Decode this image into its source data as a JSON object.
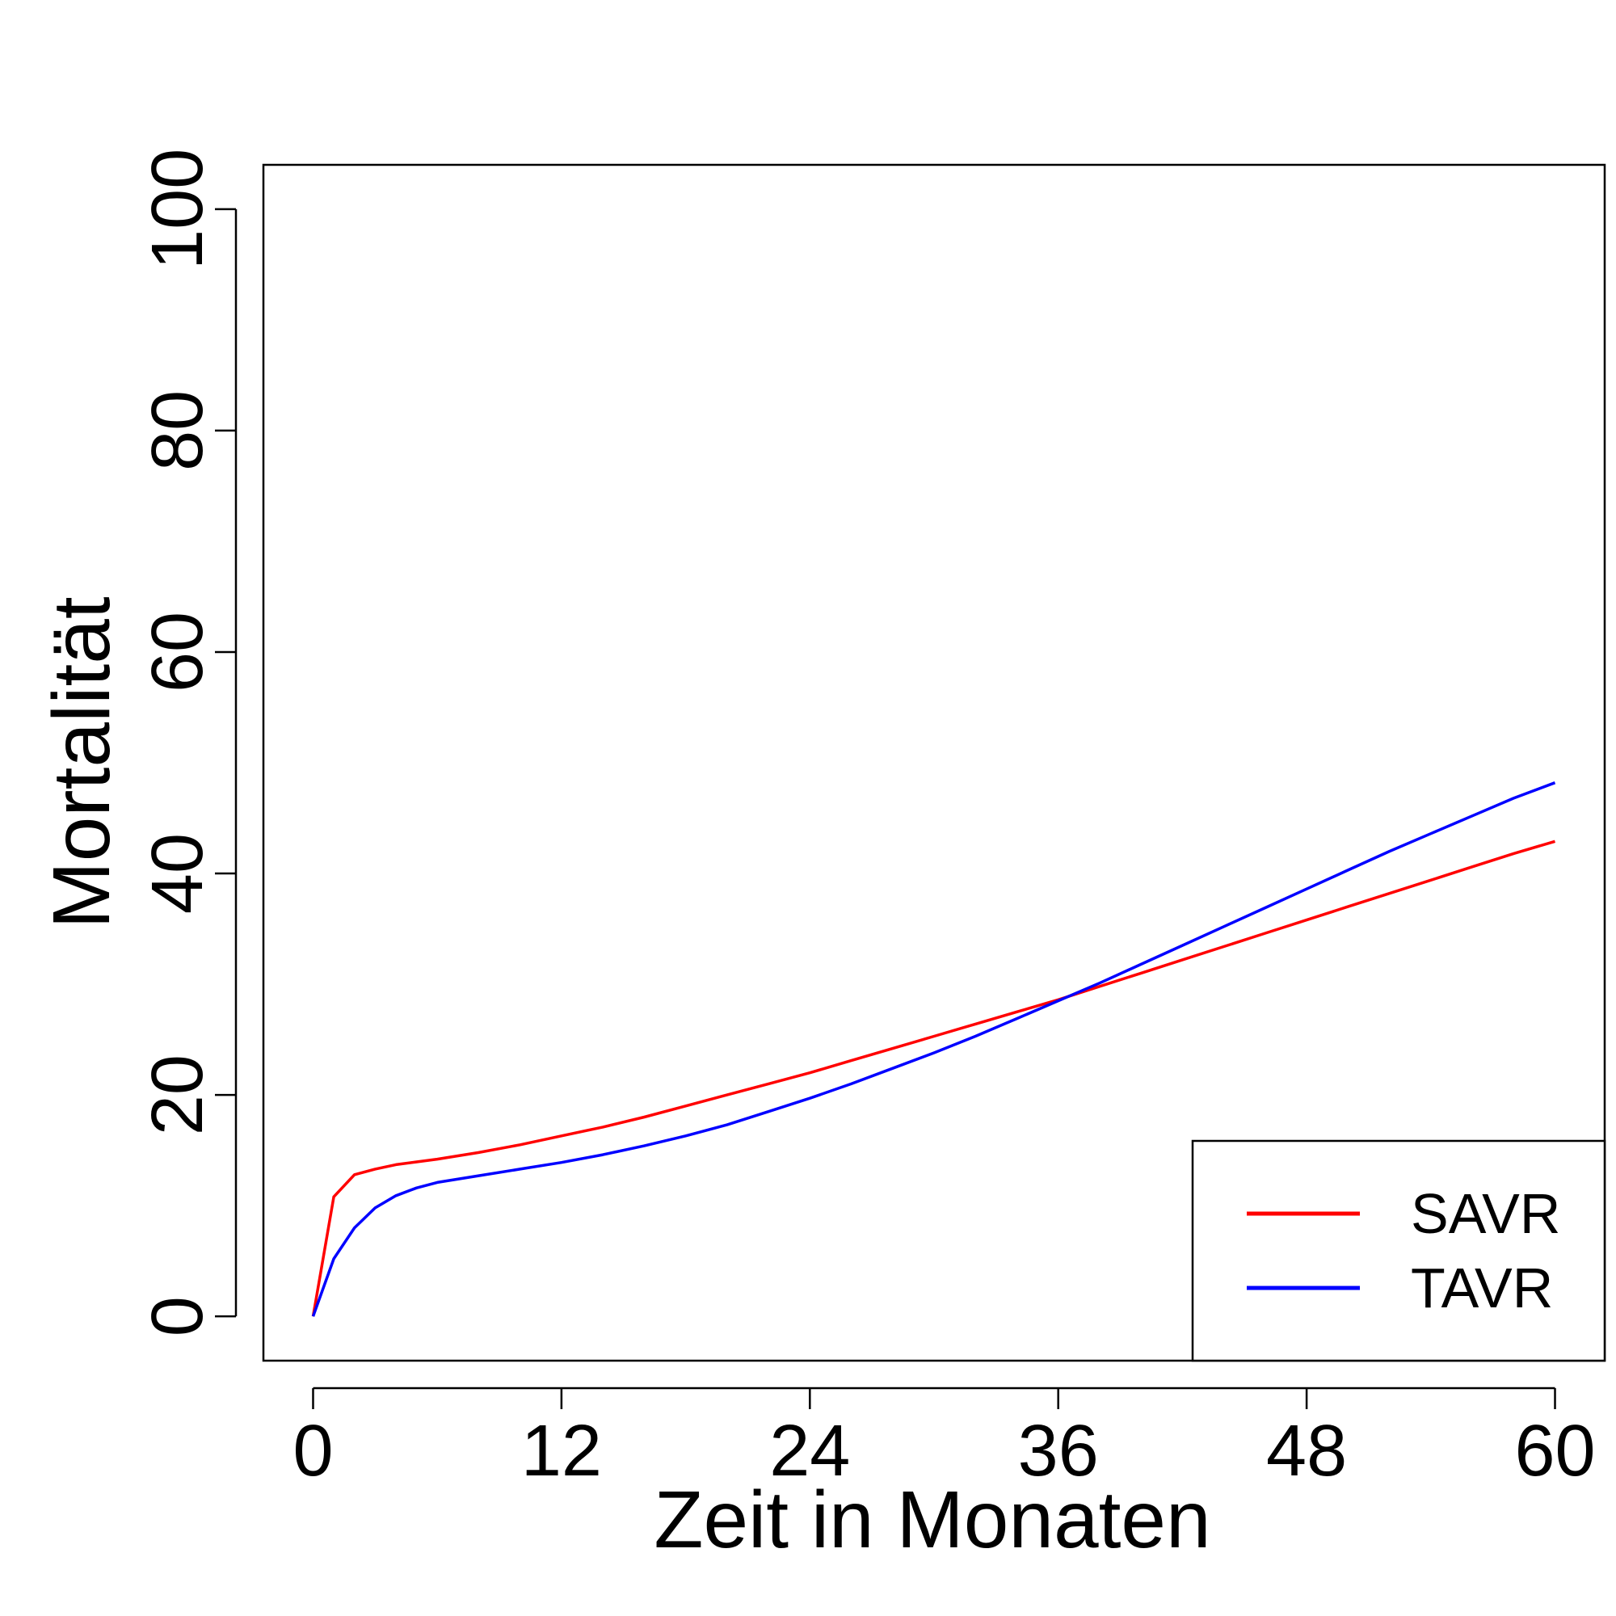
{
  "chart_data": {
    "type": "line",
    "title": "",
    "xlabel": "Zeit in Monaten",
    "ylabel": "Mortalität",
    "xlim": [
      -2.4,
      62.4
    ],
    "ylim": [
      -4,
      104
    ],
    "x_ticks": [
      "0",
      "12",
      "24",
      "36",
      "48",
      "60"
    ],
    "y_ticks": [
      "0",
      "20",
      "40",
      "60",
      "80",
      "100"
    ],
    "grid": false,
    "legend_position": "bottom-right",
    "series": [
      {
        "name": "SAVR",
        "color": "#ff0000",
        "points": [
          [
            0,
            0
          ],
          [
            1,
            10.8
          ],
          [
            2,
            12.8
          ],
          [
            3,
            13.3
          ],
          [
            4,
            13.7
          ],
          [
            5,
            13.95
          ],
          [
            6,
            14.2
          ],
          [
            8,
            14.8
          ],
          [
            10,
            15.5
          ],
          [
            12,
            16.3
          ],
          [
            14,
            17.1
          ],
          [
            16,
            18.0
          ],
          [
            18,
            19.0
          ],
          [
            20,
            20.0
          ],
          [
            22,
            21.0
          ],
          [
            24,
            22.0
          ],
          [
            26,
            23.1
          ],
          [
            28,
            24.2
          ],
          [
            30,
            25.3
          ],
          [
            32,
            26.4
          ],
          [
            34,
            27.5
          ],
          [
            36,
            28.6
          ],
          [
            38,
            29.8
          ],
          [
            40,
            31.0
          ],
          [
            42,
            32.2
          ],
          [
            44,
            33.4
          ],
          [
            46,
            34.6
          ],
          [
            48,
            35.8
          ],
          [
            50,
            37.0
          ],
          [
            52,
            38.2
          ],
          [
            54,
            39.4
          ],
          [
            56,
            40.6
          ],
          [
            58,
            41.8
          ],
          [
            60,
            42.9
          ]
        ]
      },
      {
        "name": "TAVR",
        "color": "#0000ff",
        "points": [
          [
            0,
            0
          ],
          [
            1,
            5.2
          ],
          [
            2,
            8.0
          ],
          [
            3,
            9.8
          ],
          [
            4,
            10.9
          ],
          [
            5,
            11.6
          ],
          [
            6,
            12.1
          ],
          [
            8,
            12.7
          ],
          [
            10,
            13.3
          ],
          [
            12,
            13.9
          ],
          [
            14,
            14.6
          ],
          [
            16,
            15.4
          ],
          [
            18,
            16.3
          ],
          [
            20,
            17.3
          ],
          [
            22,
            18.5
          ],
          [
            24,
            19.7
          ],
          [
            26,
            21.0
          ],
          [
            28,
            22.4
          ],
          [
            30,
            23.8
          ],
          [
            32,
            25.3
          ],
          [
            34,
            26.9
          ],
          [
            36,
            28.5
          ],
          [
            38,
            30.1
          ],
          [
            40,
            31.8
          ],
          [
            42,
            33.5
          ],
          [
            44,
            35.2
          ],
          [
            46,
            36.9
          ],
          [
            48,
            38.6
          ],
          [
            50,
            40.3
          ],
          [
            52,
            42.0
          ],
          [
            54,
            43.6
          ],
          [
            56,
            45.2
          ],
          [
            58,
            46.8
          ],
          [
            60,
            48.2
          ]
        ]
      }
    ]
  }
}
